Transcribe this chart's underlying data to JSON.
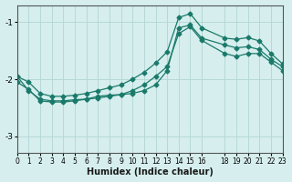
{
  "xlabel": "Humidex (Indice chaleur)",
  "bg_color": "#d6eeee",
  "grid_color": "#b8d8d8",
  "line_color": "#1a7a6a",
  "xlim": [
    0,
    23
  ],
  "ylim": [
    -3.3,
    -0.7
  ],
  "yticks": [
    -3,
    -2,
    -1
  ],
  "xticks": [
    0,
    1,
    2,
    3,
    4,
    5,
    6,
    7,
    8,
    9,
    10,
    11,
    12,
    13,
    14,
    15,
    16,
    18,
    19,
    20,
    21,
    22,
    23
  ],
  "series1_x": [
    0,
    1,
    2,
    3,
    4,
    5,
    6,
    7,
    8,
    9,
    10,
    11,
    12,
    13,
    14,
    15,
    16,
    18,
    19,
    20,
    21,
    22,
    23
  ],
  "series1_y": [
    -1.95,
    -2.2,
    -2.35,
    -2.38,
    -2.38,
    -2.36,
    -2.35,
    -2.3,
    -2.28,
    -2.27,
    -2.25,
    -2.2,
    -2.1,
    -1.85,
    -1.1,
    -1.05,
    -1.28,
    -1.4,
    -1.45,
    -1.43,
    -1.48,
    -1.65,
    -1.78
  ],
  "series2_x": [
    0,
    1,
    2,
    3,
    4,
    5,
    6,
    7,
    8,
    9,
    10,
    11,
    12,
    13,
    14,
    15,
    16,
    18,
    19,
    20,
    21,
    22,
    23
  ],
  "series2_y": [
    -2.05,
    -2.18,
    -2.38,
    -2.4,
    -2.4,
    -2.38,
    -2.35,
    -2.33,
    -2.3,
    -2.27,
    -2.2,
    -2.1,
    -1.95,
    -1.78,
    -1.2,
    -1.08,
    -1.32,
    -1.55,
    -1.6,
    -1.55,
    -1.55,
    -1.7,
    -1.85
  ],
  "series3_x": [
    0,
    1,
    2,
    3,
    4,
    5,
    6,
    7,
    8,
    9,
    10,
    11,
    12,
    13,
    14,
    15,
    16,
    18,
    19,
    20,
    21,
    22,
    23
  ],
  "series3_y": [
    -1.95,
    -2.05,
    -2.25,
    -2.3,
    -2.3,
    -2.28,
    -2.25,
    -2.2,
    -2.15,
    -2.1,
    -2.0,
    -1.88,
    -1.72,
    -1.52,
    -0.92,
    -0.85,
    -1.1,
    -1.28,
    -1.3,
    -1.27,
    -1.33,
    -1.55,
    -1.73
  ]
}
